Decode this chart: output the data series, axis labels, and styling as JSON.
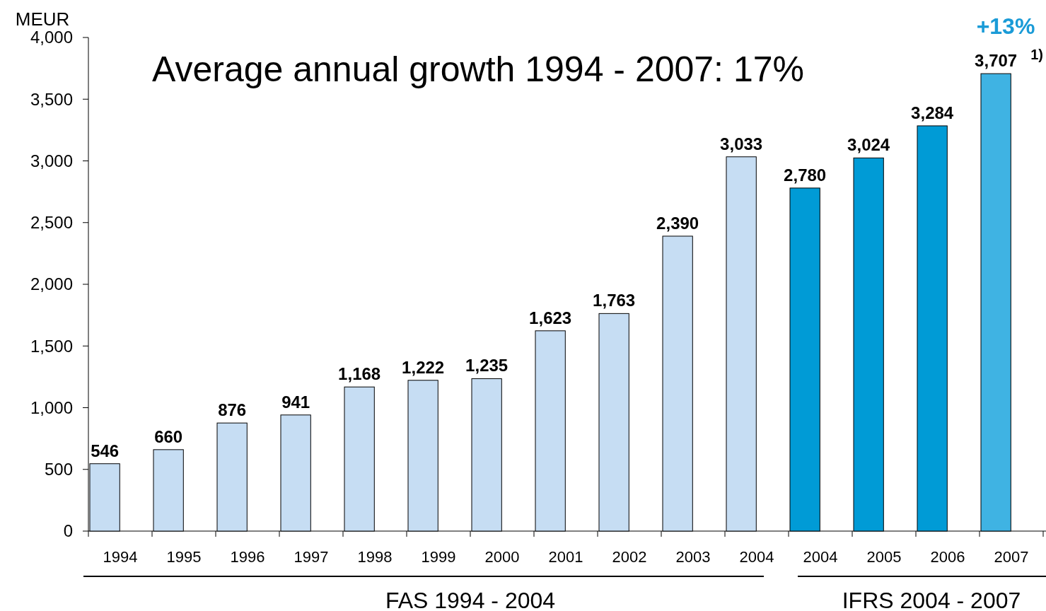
{
  "chart_data": {
    "type": "bar",
    "title": "Average annual growth 1994 - 2007: 17%",
    "ylabel": "MEUR",
    "categories": [
      "1994",
      "1995",
      "1996",
      "1997",
      "1998",
      "1999",
      "2000",
      "2001",
      "2002",
      "2003",
      "2004",
      "2004",
      "2005",
      "2006",
      "2007"
    ],
    "values": [
      546,
      660,
      876,
      941,
      1168,
      1222,
      1235,
      1623,
      1763,
      2390,
      3033,
      2780,
      3024,
      3284,
      3707
    ],
    "colors": [
      "#c6ddf3",
      "#c6ddf3",
      "#c6ddf3",
      "#c6ddf3",
      "#c6ddf3",
      "#c6ddf3",
      "#c6ddf3",
      "#c6ddf3",
      "#c6ddf3",
      "#c6ddf3",
      "#c6ddf3",
      "#009bd6",
      "#009bd6",
      "#009bd6",
      "#3fb3e3"
    ],
    "ylim": [
      0,
      4000
    ],
    "yticks": [
      0,
      500,
      {
        "value": 1000,
        "label": "1,000"
      },
      {
        "value": 1500,
        "label": "1,500"
      },
      {
        "value": 2000,
        "label": "2,000"
      },
      {
        "value": 2500,
        "label": "2,500"
      },
      {
        "value": 3000,
        "label": "3,000"
      },
      {
        "value": 3500,
        "label": "3,500"
      },
      {
        "value": 4000,
        "label": "4,000"
      }
    ],
    "value_labels": [
      "546",
      "660",
      "876",
      "941",
      "1,168",
      "1,222",
      "1,235",
      "1,623",
      "1,763",
      "2,390",
      "3,033",
      "2,780",
      "3,024",
      "3,284",
      "3,707"
    ],
    "annotations": [
      "+13%",
      "1)",
      "FAS 1994 - 2004",
      "IFRS 2004 - 2007"
    ]
  }
}
